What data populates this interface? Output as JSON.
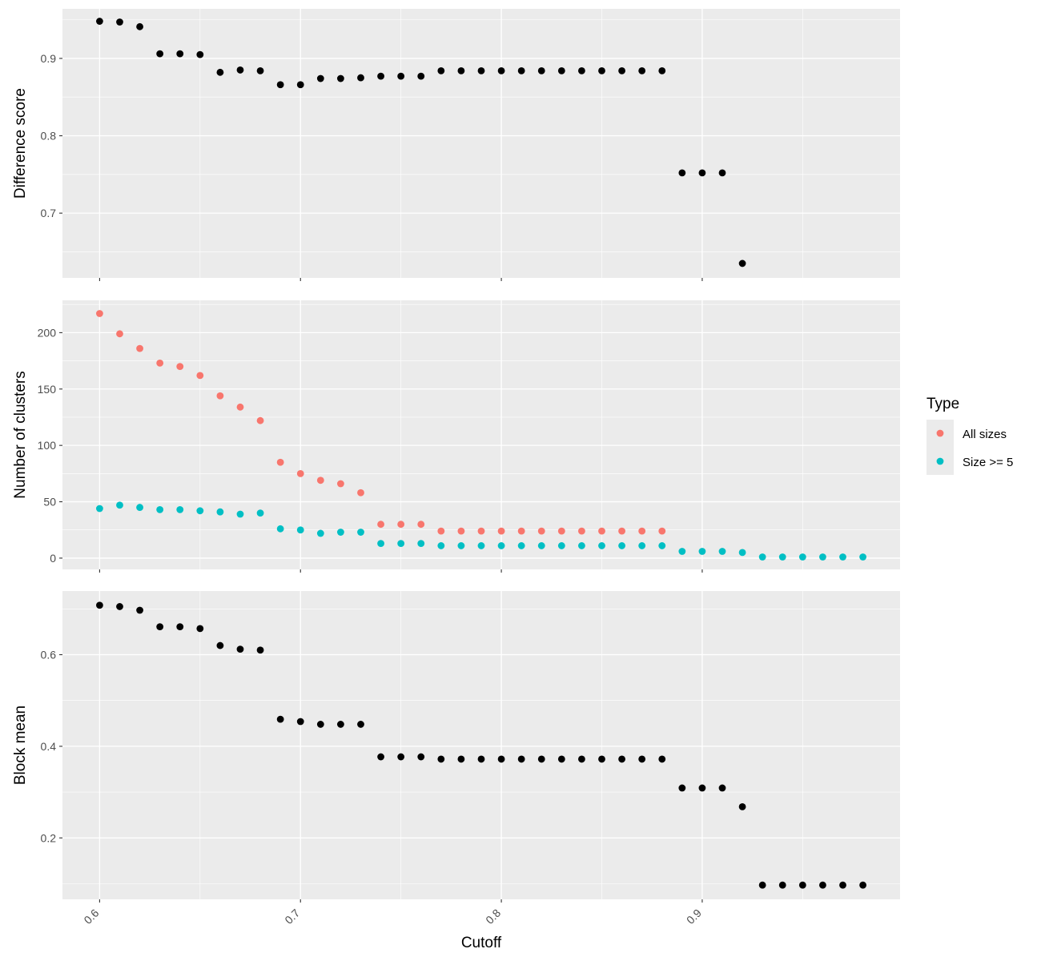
{
  "chart_data": {
    "type": "scatter",
    "x_label": "Cutoff",
    "x_ticks": [
      0.6,
      0.7,
      0.8,
      0.9
    ],
    "x_tick_labels": [
      "0.6",
      "0.7",
      "0.8",
      "0.9"
    ],
    "x_range": [
      0.5815,
      0.9985
    ],
    "grid": true,
    "legend": {
      "title": "Type",
      "position": "right",
      "entries": [
        {
          "label": "All sizes",
          "color": "#F8766D"
        },
        {
          "label": "Size >= 5",
          "color": "#00BFC4"
        }
      ]
    },
    "panels": [
      {
        "y_label": "Difference score",
        "y_range": [
          0.6163,
          0.9641
        ],
        "y_ticks": [
          0.7,
          0.8,
          0.9
        ],
        "y_tick_labels": [
          "0.7",
          "0.8",
          "0.9"
        ],
        "series": [
          {
            "color": "#000000",
            "x": [
              0.6,
              0.61,
              0.62,
              0.63,
              0.64,
              0.65,
              0.66,
              0.67,
              0.68,
              0.69,
              0.7,
              0.71,
              0.72,
              0.73,
              0.74,
              0.75,
              0.76,
              0.77,
              0.78,
              0.79,
              0.8,
              0.81,
              0.82,
              0.83,
              0.84,
              0.85,
              0.86,
              0.87,
              0.88,
              0.89,
              0.9,
              0.91,
              0.92
            ],
            "y": [
              0.948,
              0.947,
              0.941,
              0.906,
              0.906,
              0.905,
              0.882,
              0.885,
              0.884,
              0.866,
              0.866,
              0.874,
              0.874,
              0.875,
              0.877,
              0.877,
              0.877,
              0.884,
              0.884,
              0.884,
              0.884,
              0.884,
              0.884,
              0.884,
              0.884,
              0.884,
              0.884,
              0.884,
              0.884,
              0.752,
              0.752,
              0.752,
              0.635
            ]
          }
        ]
      },
      {
        "y_label": "Number of clusters",
        "y_range": [
          -10.0,
          228.7
        ],
        "y_ticks": [
          0,
          50,
          100,
          150,
          200
        ],
        "y_tick_labels": [
          "0",
          "50",
          "100",
          "150",
          "200"
        ],
        "series": [
          {
            "name": "All sizes",
            "color": "#F8766D",
            "x": [
              0.6,
              0.61,
              0.62,
              0.63,
              0.64,
              0.65,
              0.66,
              0.67,
              0.68,
              0.69,
              0.7,
              0.71,
              0.72,
              0.73,
              0.74,
              0.75,
              0.76,
              0.77,
              0.78,
              0.79,
              0.8,
              0.81,
              0.82,
              0.83,
              0.84,
              0.85,
              0.86,
              0.87,
              0.88
            ],
            "y": [
              217,
              199,
              186,
              173,
              170,
              162,
              144,
              134,
              122,
              85,
              75,
              69,
              66,
              58,
              30,
              30,
              30,
              24,
              24,
              24,
              24,
              24,
              24,
              24,
              24,
              24,
              24,
              24,
              24
            ]
          },
          {
            "name": "Size >= 5",
            "color": "#00BFC4",
            "x": [
              0.6,
              0.61,
              0.62,
              0.63,
              0.64,
              0.65,
              0.66,
              0.67,
              0.68,
              0.69,
              0.7,
              0.71,
              0.72,
              0.73,
              0.74,
              0.75,
              0.76,
              0.77,
              0.78,
              0.79,
              0.8,
              0.81,
              0.82,
              0.83,
              0.84,
              0.85,
              0.86,
              0.87,
              0.88,
              0.89,
              0.9,
              0.91,
              0.92,
              0.93,
              0.94,
              0.95,
              0.96,
              0.97,
              0.98
            ],
            "y": [
              44,
              47,
              45,
              43,
              43,
              42,
              41,
              39,
              40,
              26,
              25,
              22,
              23,
              23,
              13,
              13,
              13,
              11,
              11,
              11,
              11,
              11,
              11,
              11,
              11,
              11,
              11,
              11,
              11,
              6,
              6,
              6,
              5,
              1,
              1,
              1,
              1,
              1,
              1
            ]
          }
        ]
      },
      {
        "y_label": "Block mean",
        "y_range": [
          0.0659,
          0.739
        ],
        "y_ticks": [
          0.2,
          0.4,
          0.6
        ],
        "y_tick_labels": [
          "0.2",
          "0.4",
          "0.6"
        ],
        "series": [
          {
            "color": "#000000",
            "x": [
              0.6,
              0.61,
              0.62,
              0.63,
              0.64,
              0.65,
              0.66,
              0.67,
              0.68,
              0.69,
              0.7,
              0.71,
              0.72,
              0.73,
              0.74,
              0.75,
              0.76,
              0.77,
              0.78,
              0.79,
              0.8,
              0.81,
              0.82,
              0.83,
              0.84,
              0.85,
              0.86,
              0.87,
              0.88,
              0.89,
              0.9,
              0.91,
              0.92,
              0.93,
              0.94,
              0.95,
              0.96,
              0.97,
              0.98
            ],
            "y": [
              0.708,
              0.705,
              0.697,
              0.661,
              0.661,
              0.657,
              0.62,
              0.612,
              0.61,
              0.459,
              0.454,
              0.448,
              0.448,
              0.448,
              0.377,
              0.377,
              0.377,
              0.372,
              0.372,
              0.372,
              0.372,
              0.372,
              0.372,
              0.372,
              0.372,
              0.372,
              0.372,
              0.372,
              0.372,
              0.309,
              0.309,
              0.309,
              0.268,
              0.097,
              0.097,
              0.097,
              0.097,
              0.097,
              0.097
            ]
          }
        ]
      }
    ]
  }
}
